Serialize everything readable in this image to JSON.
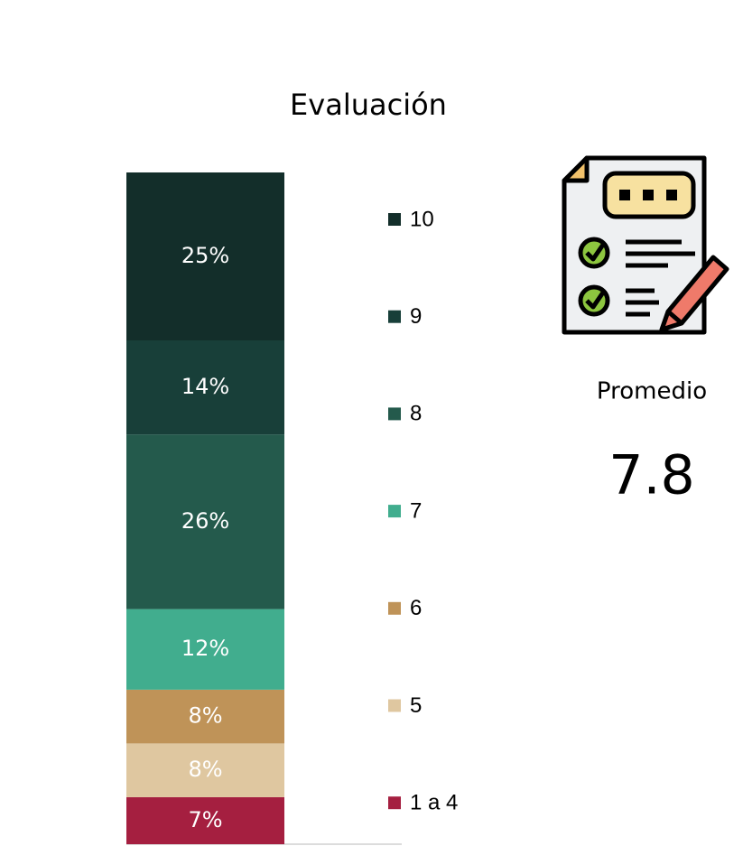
{
  "chart_data": {
    "type": "bar",
    "stacked": true,
    "title": "Evaluación",
    "categories": [
      null
    ],
    "series": [
      {
        "name": "1 a 4",
        "color": "#a51f40",
        "values": [
          7
        ],
        "value_labels": [
          "7%"
        ]
      },
      {
        "name": "5",
        "color": "#dfc7a0",
        "values": [
          8
        ],
        "value_labels": [
          "8%"
        ]
      },
      {
        "name": "6",
        "color": "#bf9358",
        "values": [
          8
        ],
        "value_labels": [
          "8%"
        ]
      },
      {
        "name": "7",
        "color": "#41ad8e",
        "values": [
          12
        ],
        "value_labels": [
          "12%"
        ]
      },
      {
        "name": "8",
        "color": "#245a4c",
        "values": [
          26
        ],
        "value_labels": [
          "26%"
        ]
      },
      {
        "name": "9",
        "color": "#183f39",
        "values": [
          14
        ],
        "value_labels": [
          "14%"
        ]
      },
      {
        "name": "10",
        "color": "#132e2a",
        "values": [
          25
        ],
        "value_labels": [
          "25%"
        ]
      }
    ],
    "legend": "right",
    "average": {
      "label": "Promedio",
      "value": 7.8
    }
  }
}
